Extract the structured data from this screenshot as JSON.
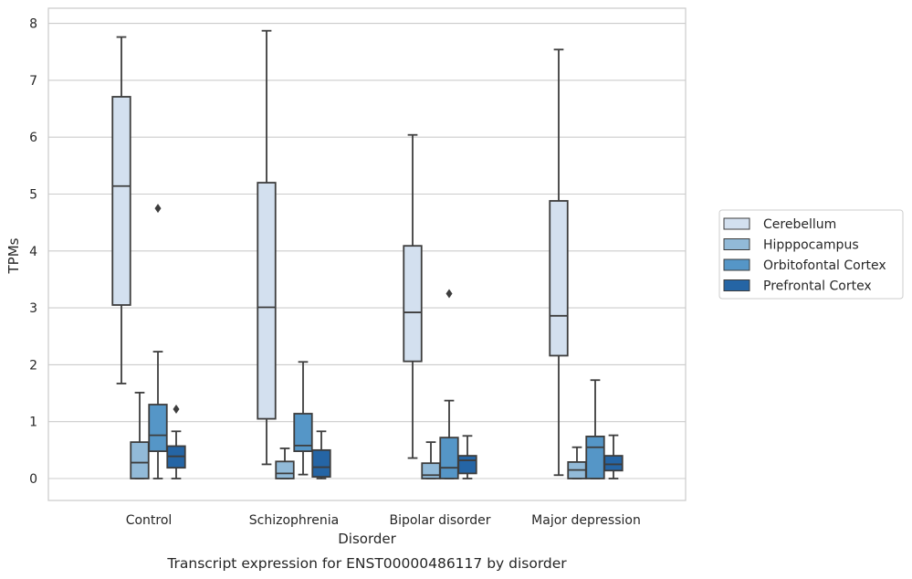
{
  "chart_data": {
    "type": "box",
    "title": "Transcript expression for ENST00000486117 by disorder",
    "xlabel": "Disorder",
    "ylabel": "TPMs",
    "ylim": [
      -0.38,
      8.28
    ],
    "yticks": [
      "0",
      "1",
      "2",
      "3",
      "4",
      "5",
      "6",
      "7",
      "8"
    ],
    "grid": "horizontal",
    "legend_position": "right",
    "categories": [
      "Control",
      "Schizophrenia",
      "Bipolar disorder",
      "Major depression"
    ],
    "series": [
      {
        "name": "Cerebellum",
        "color": "#d3e0ef",
        "boxes": [
          {
            "whislo": 1.67,
            "q1": 3.05,
            "med": 5.14,
            "q3": 6.71,
            "whishi": 7.76,
            "fliers": []
          },
          {
            "whislo": 0.25,
            "q1": 1.05,
            "med": 3.01,
            "q3": 5.2,
            "whishi": 7.87,
            "fliers": []
          },
          {
            "whislo": 0.36,
            "q1": 2.06,
            "med": 2.92,
            "q3": 4.09,
            "whishi": 6.04,
            "fliers": []
          },
          {
            "whislo": 0.06,
            "q1": 2.16,
            "med": 2.86,
            "q3": 4.88,
            "whishi": 7.54,
            "fliers": []
          }
        ]
      },
      {
        "name": "Hipppocampus",
        "color": "#92bad8",
        "boxes": [
          {
            "whislo": 0.0,
            "q1": 0.0,
            "med": 0.28,
            "q3": 0.64,
            "whishi": 1.51,
            "fliers": []
          },
          {
            "whislo": 0.0,
            "q1": 0.0,
            "med": 0.09,
            "q3": 0.3,
            "whishi": 0.53,
            "fliers": []
          },
          {
            "whislo": 0.0,
            "q1": 0.0,
            "med": 0.06,
            "q3": 0.27,
            "whishi": 0.64,
            "fliers": []
          },
          {
            "whislo": 0.0,
            "q1": 0.0,
            "med": 0.15,
            "q3": 0.29,
            "whishi": 0.55,
            "fliers": []
          }
        ]
      },
      {
        "name": "Orbitofontal Cortex",
        "color": "#5596c7",
        "boxes": [
          {
            "whislo": 0.0,
            "q1": 0.48,
            "med": 0.76,
            "q3": 1.3,
            "whishi": 2.23,
            "fliers": [
              4.75
            ]
          },
          {
            "whislo": 0.07,
            "q1": 0.48,
            "med": 0.58,
            "q3": 1.14,
            "whishi": 2.05,
            "fliers": []
          },
          {
            "whislo": 0.0,
            "q1": 0.0,
            "med": 0.19,
            "q3": 0.72,
            "whishi": 1.37,
            "fliers": [
              3.25
            ]
          },
          {
            "whislo": 0.0,
            "q1": 0.0,
            "med": 0.55,
            "q3": 0.74,
            "whishi": 1.73,
            "fliers": []
          }
        ]
      },
      {
        "name": "Prefrontal Cortex",
        "color": "#2565a5",
        "boxes": [
          {
            "whislo": 0.0,
            "q1": 0.19,
            "med": 0.39,
            "q3": 0.57,
            "whishi": 0.83,
            "fliers": [
              1.22
            ]
          },
          {
            "whislo": 0.0,
            "q1": 0.03,
            "med": 0.2,
            "q3": 0.5,
            "whishi": 0.83,
            "fliers": []
          },
          {
            "whislo": 0.0,
            "q1": 0.09,
            "med": 0.32,
            "q3": 0.4,
            "whishi": 0.75,
            "fliers": []
          },
          {
            "whislo": 0.0,
            "q1": 0.14,
            "med": 0.25,
            "q3": 0.4,
            "whishi": 0.76,
            "fliers": []
          }
        ]
      }
    ]
  }
}
